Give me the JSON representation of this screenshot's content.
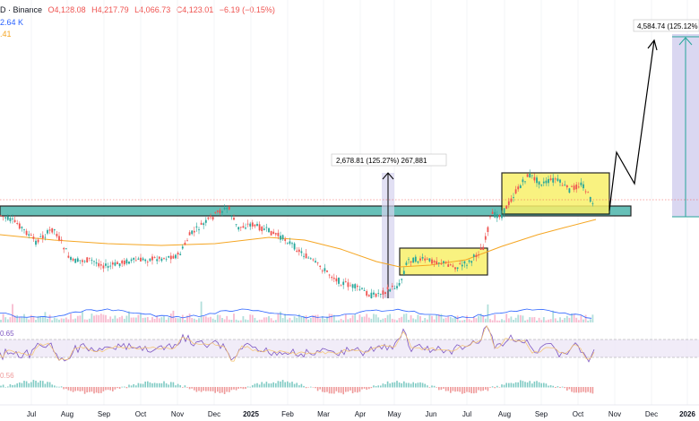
{
  "header": {
    "symbol": "D · Binance",
    "open": "O4,128.08",
    "high": "H4,217.79",
    "low": "L4,066.73",
    "close": "C4,123.01",
    "change": "−6.19 (−0.15%)",
    "volume": "2.64 K",
    "ma": ".41"
  },
  "annotations": {
    "measure_small": "2,678.81 (125.27%) 267,881",
    "measure_target": "4,584.74 (125.12%"
  },
  "indicators": {
    "rsi_value": "0.65",
    "macd_value": "0.56"
  },
  "time_axis": {
    "labels": [
      "Jul",
      "Aug",
      "Sep",
      "Oct",
      "Nov",
      "Dec",
      "2025",
      "Feb",
      "Mar",
      "Apr",
      "May",
      "Jun",
      "Jul",
      "Aug",
      "Sep",
      "Oct",
      "Nov",
      "Dec",
      "2026"
    ]
  },
  "colors": {
    "up": "#26a69a",
    "down": "#ef5350",
    "zone": "#4db6ac",
    "box": "#f9f06b",
    "ma": "#f5a623",
    "volume_ma": "#2962ff",
    "rsi": "#7e57c2",
    "target_fill": "#d6d3f0"
  }
}
